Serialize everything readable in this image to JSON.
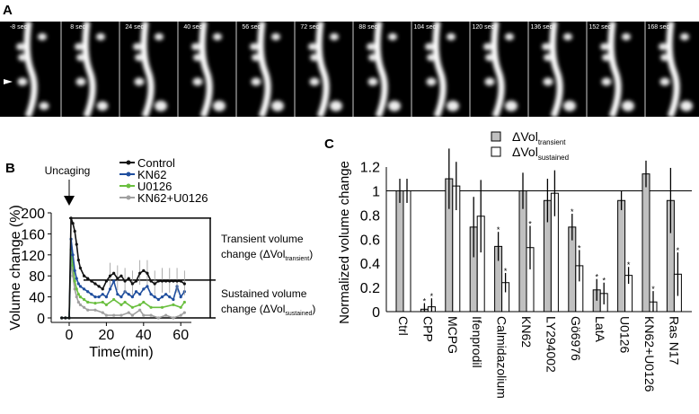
{
  "panels": {
    "a": "A",
    "b": "B",
    "c": "C"
  },
  "panel_a": {
    "frame_labels": [
      "-8 sec",
      "8 sec",
      "24 sec",
      "40 sec",
      "56 sec",
      "72 sec",
      "88 sec",
      "104 sec",
      "120 sec",
      "136 sec",
      "152 sec",
      "168 sec"
    ],
    "marker": "arrowhead-icon"
  },
  "chart_data": [
    {
      "type": "line",
      "panel": "B",
      "xlabel": "Time(min)",
      "ylabel": "Volume change (%)",
      "xlim": [
        -8,
        70
      ],
      "ylim": [
        0,
        200
      ],
      "xticks": [
        0,
        20,
        40,
        60
      ],
      "yticks": [
        0,
        40,
        80,
        120,
        160,
        200
      ],
      "annotation_arrow": "Uncaging",
      "bracket_transient": {
        "label": "Transient volume change (ΔVol",
        "sub": "transient",
        "close": ")",
        "value": 190
      },
      "bracket_sustained": {
        "label": "Sustained volume change (ΔVol",
        "sub": "sustained",
        "close": ")",
        "value": 72
      },
      "legend_placement": "top",
      "series": [
        {
          "name": "Control",
          "color": "#111111",
          "x": [
            -4,
            -2,
            0,
            1,
            2,
            3,
            4,
            5,
            6,
            8,
            10,
            12,
            14,
            16,
            18,
            20,
            22,
            24,
            26,
            28,
            30,
            32,
            34,
            36,
            38,
            40,
            42,
            44,
            46,
            48,
            50,
            52,
            54,
            56,
            58,
            60,
            62
          ],
          "y": [
            0,
            0,
            0,
            190,
            180,
            165,
            140,
            110,
            95,
            80,
            75,
            70,
            65,
            60,
            55,
            70,
            80,
            85,
            75,
            80,
            70,
            75,
            65,
            70,
            85,
            90,
            85,
            70,
            65,
            70,
            70,
            70,
            70,
            70,
            70,
            70,
            65
          ]
        },
        {
          "name": "KN62",
          "color": "#1f4e9e",
          "x": [
            -4,
            -2,
            0,
            1,
            2,
            3,
            4,
            5,
            6,
            8,
            10,
            12,
            14,
            16,
            18,
            20,
            22,
            24,
            26,
            28,
            30,
            32,
            34,
            36,
            38,
            40,
            42,
            44,
            46,
            48,
            50,
            52,
            54,
            56,
            58,
            60,
            62
          ],
          "y": [
            0,
            0,
            0,
            150,
            120,
            90,
            75,
            65,
            60,
            55,
            50,
            45,
            40,
            40,
            45,
            40,
            55,
            70,
            45,
            40,
            50,
            45,
            40,
            50,
            45,
            55,
            60,
            45,
            40,
            35,
            40,
            45,
            40,
            35,
            60,
            40,
            50
          ]
        },
        {
          "name": "U0126",
          "color": "#6abf3f",
          "x": [
            -4,
            -2,
            0,
            1,
            2,
            3,
            4,
            5,
            6,
            8,
            10,
            14,
            18,
            20,
            24,
            28,
            30,
            34,
            38,
            40,
            44,
            50,
            56,
            60,
            62
          ],
          "y": [
            0,
            0,
            0,
            130,
            100,
            70,
            55,
            45,
            40,
            35,
            30,
            28,
            30,
            25,
            35,
            25,
            30,
            20,
            25,
            30,
            20,
            20,
            25,
            20,
            30
          ]
        },
        {
          "name": "KN62+U0126",
          "color": "#a0a0a0",
          "x": [
            -4,
            -2,
            0,
            1,
            2,
            3,
            4,
            5,
            6,
            8,
            10,
            14,
            18,
            20,
            24,
            28,
            32,
            34,
            38,
            40,
            44,
            48,
            52,
            56,
            60,
            62
          ],
          "y": [
            0,
            0,
            0,
            110,
            80,
            55,
            40,
            30,
            25,
            20,
            15,
            15,
            10,
            5,
            5,
            5,
            10,
            5,
            15,
            5,
            5,
            0,
            5,
            0,
            5,
            10
          ]
        }
      ]
    },
    {
      "type": "bar",
      "panel": "C",
      "ylabel": "Normalized volume change",
      "ylim": [
        0,
        1.3
      ],
      "yticks": [
        "0",
        "0.2",
        "0.4",
        "0.6",
        "0.8",
        "1",
        "1.2"
      ],
      "reference_line": 1,
      "legend_placement": "top",
      "categories": [
        "Ctrl",
        "CPP",
        "MCPG",
        "Ifenprodil",
        "Calmidazolium",
        "KN62",
        "LY294002",
        "Gö6976",
        "LatA",
        "U0126",
        "KN62+U0126",
        "Ras N17"
      ],
      "series": [
        {
          "name": "ΔVol",
          "sub": "transient",
          "color": "#c0c0c0",
          "values": [
            1.0,
            0.02,
            1.1,
            0.7,
            0.54,
            1.0,
            0.92,
            0.7,
            0.18,
            0.92,
            1.14,
            0.92
          ],
          "errors": [
            0.1,
            0.05,
            0.25,
            0.25,
            0.12,
            0.15,
            0.18,
            0.11,
            0.09,
            0.08,
            0.11,
            0.27
          ],
          "significant": [
            false,
            true,
            false,
            false,
            true,
            false,
            false,
            true,
            true,
            false,
            false,
            false
          ]
        },
        {
          "name": "ΔVol",
          "sub": "sustained",
          "color": "#ffffff",
          "values": [
            1.0,
            0.04,
            1.04,
            0.79,
            0.24,
            0.53,
            0.98,
            0.38,
            0.15,
            0.3,
            0.08,
            0.31
          ],
          "errors": [
            0.1,
            0.07,
            0.2,
            0.3,
            0.08,
            0.18,
            0.19,
            0.13,
            0.09,
            0.07,
            0.09,
            0.18
          ],
          "significant": [
            false,
            true,
            false,
            false,
            true,
            true,
            false,
            true,
            true,
            true,
            true,
            true
          ]
        }
      ],
      "significance_mark": "*"
    }
  ]
}
